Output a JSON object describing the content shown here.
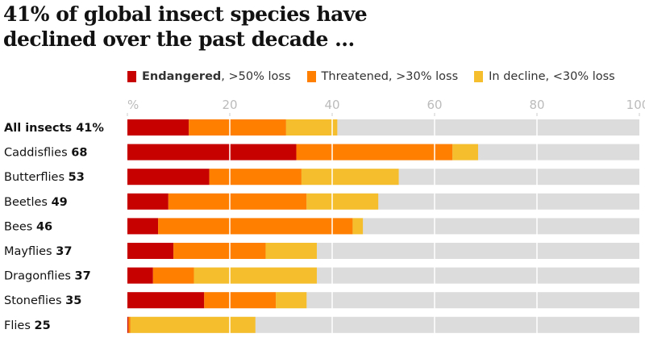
{
  "chart_data": {
    "type": "bar",
    "stacked": true,
    "orientation": "horizontal",
    "title": "41% of global insect species have declined over the past decade ...",
    "xlim": [
      0,
      100
    ],
    "xticks": [
      "%",
      "20",
      "40",
      "60",
      "80",
      "100"
    ],
    "grid": true,
    "legend_position": "top",
    "colors": {
      "Endangered": "#c70000",
      "Threatened": "#ff7f00",
      "In decline": "#f5be2c",
      "background": "#dcdcdc"
    },
    "legend": [
      {
        "bold": "Endangered",
        "rest": ", >50% loss"
      },
      {
        "bold": "",
        "rest": "Threatened, >30% loss"
      },
      {
        "bold": "",
        "rest": "In decline, <30% loss"
      }
    ],
    "categories": [
      {
        "name": "All insects",
        "total": "41%",
        "bold_name": true
      },
      {
        "name": "Caddisflies",
        "total": "68"
      },
      {
        "name": "Butterflies",
        "total": "53"
      },
      {
        "name": "Beetles",
        "total": "49"
      },
      {
        "name": "Bees",
        "total": "46"
      },
      {
        "name": "Mayflies",
        "total": "37"
      },
      {
        "name": "Dragonflies",
        "total": "37"
      },
      {
        "name": "Stoneflies",
        "total": "35"
      },
      {
        "name": "Flies",
        "total": "25"
      }
    ],
    "series": [
      {
        "name": "Endangered",
        "values": [
          12,
          33,
          16,
          8,
          6,
          9,
          5,
          15,
          0.2
        ]
      },
      {
        "name": "Threatened",
        "values": [
          19,
          30.5,
          18,
          27,
          38,
          18,
          8,
          14,
          0.4
        ]
      },
      {
        "name": "In decline",
        "values": [
          10,
          5,
          19,
          14,
          2,
          10,
          24,
          6,
          24.4
        ]
      }
    ]
  }
}
